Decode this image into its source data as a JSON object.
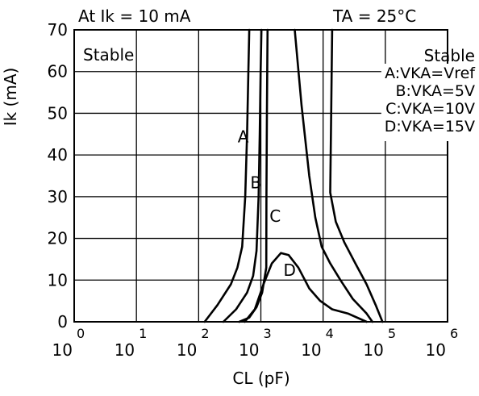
{
  "chart_data": {
    "type": "line",
    "title": "",
    "annotations": {
      "condition_left": "At Ik = 10 mA",
      "condition_right": "TA = 25°C",
      "region_left": "Stable",
      "region_right": "Stable"
    },
    "xlabel": "CL (pF)",
    "ylabel": "Ik (mA)",
    "x_scale": "log",
    "xlim": [
      1,
      1000000
    ],
    "ylim": [
      0,
      70
    ],
    "grid": true,
    "x_ticks": [
      {
        "base": "10",
        "exp": "0"
      },
      {
        "base": "10",
        "exp": "1"
      },
      {
        "base": "10",
        "exp": "2"
      },
      {
        "base": "10",
        "exp": "3"
      },
      {
        "base": "10",
        "exp": "4"
      },
      {
        "base": "10",
        "exp": "5"
      },
      {
        "base": "10",
        "exp": "6"
      }
    ],
    "y_ticks": [
      "0",
      "10",
      "20",
      "30",
      "40",
      "50",
      "60",
      "70"
    ],
    "legend": {
      "placement": "top-right",
      "entries": [
        "A:VKA=Vref",
        "B:VKA=5V",
        "C:VKA=10V",
        "D:VKA=15V"
      ]
    },
    "series": [
      {
        "name": "A",
        "segments": [
          [
            [
              125,
              0
            ],
            [
              200,
              4
            ],
            [
              330,
              9
            ],
            [
              420,
              13
            ],
            [
              500,
              18
            ],
            [
              560,
              30
            ],
            [
              600,
              45
            ],
            [
              630,
              60
            ],
            [
              650,
              70
            ]
          ]
        ],
        "label_at": [
          520,
          43
        ]
      },
      {
        "name": "B",
        "segments": [
          [
            [
              250,
              0
            ],
            [
              400,
              3
            ],
            [
              600,
              7
            ],
            [
              750,
              11
            ],
            [
              850,
              17
            ],
            [
              920,
              30
            ],
            [
              960,
              45
            ],
            [
              990,
              60
            ],
            [
              1020,
              70
            ]
          ]
        ],
        "label_at": [
          830,
          32
        ]
      },
      {
        "name": "C",
        "segments": [
          [
            [
              450,
              0
            ],
            [
              650,
              1
            ],
            [
              850,
              3.5
            ],
            [
              1050,
              7
            ],
            [
              1220,
              13
            ]
          ],
          [
            [
              1220,
              13
            ],
            [
              1230,
              30
            ],
            [
              1250,
              50
            ],
            [
              1280,
              70
            ]
          ]
        ],
        "label_at": [
          1700,
          24
        ]
      },
      {
        "name": "D",
        "segments": [
          [
            [
              550,
              0
            ],
            [
              800,
              3
            ],
            [
              1100,
              9
            ],
            [
              1500,
              14
            ],
            [
              2100,
              16.5
            ],
            [
              2800,
              16
            ],
            [
              4000,
              13
            ],
            [
              6000,
              8
            ],
            [
              9000,
              5
            ],
            [
              14000,
              3
            ],
            [
              25000,
              2
            ],
            [
              50000,
              0
            ]
          ]
        ],
        "label_at": [
          2900,
          11
        ]
      },
      {
        "name": "stable-boundary-outer",
        "segments": [
          [
            [
              3500,
              70
            ],
            [
              4500,
              52
            ],
            [
              6000,
              35
            ],
            [
              7500,
              25
            ],
            [
              9500,
              18
            ],
            [
              13000,
              14
            ],
            [
              19000,
              10
            ],
            [
              30000,
              5.5
            ],
            [
              50000,
              2
            ],
            [
              62000,
              0
            ]
          ]
        ]
      },
      {
        "name": "stable-boundary-right",
        "segments": [
          [
            [
              14000,
              70
            ],
            [
              13500,
              50
            ],
            [
              13000,
              31
            ],
            [
              16000,
              24
            ],
            [
              22000,
              19
            ],
            [
              33000,
              14
            ],
            [
              50000,
              9
            ],
            [
              70000,
              4
            ],
            [
              90000,
              0
            ]
          ]
        ]
      }
    ]
  }
}
